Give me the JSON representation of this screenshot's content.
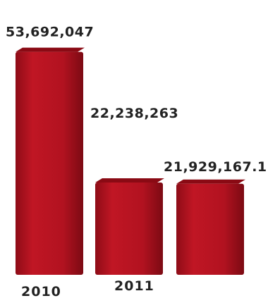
{
  "chart_data": {
    "type": "bar",
    "categories": [
      "2010",
      "2011",
      ""
    ],
    "values": [
      53692047,
      22238263,
      21929167.1
    ],
    "data_labels": [
      "53,692,047",
      "22,238,263",
      "21,929,167.1"
    ],
    "title": "",
    "xlabel": "",
    "ylabel": "",
    "ylim": [
      0,
      56000000
    ],
    "grid": false,
    "legend": "none",
    "bar_color": "#b5101e",
    "bar_top_color": "#8a0a14",
    "bar_side_color": "#7a0a12"
  }
}
